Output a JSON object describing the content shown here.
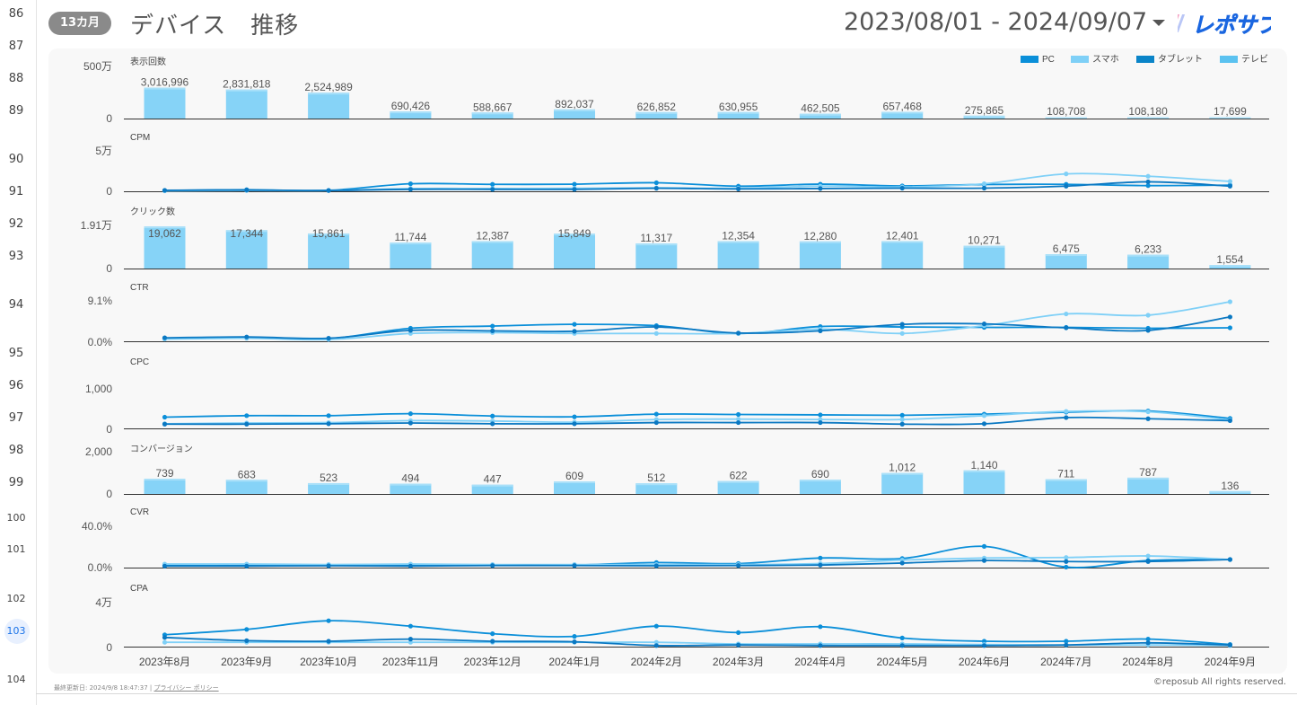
{
  "sheet": {
    "row_numbers": [
      "86",
      "87",
      "88",
      "89",
      "90",
      "91",
      "92",
      "93",
      "94",
      "95",
      "96",
      "97",
      "98",
      "99",
      "100",
      "101",
      "102",
      "103",
      "104"
    ],
    "selected_row": "103"
  },
  "header": {
    "badge": "13カ月",
    "title": "デバイス　推移",
    "date_range": "2023/08/01 - 2024/09/07",
    "logo_text": "レポサブ"
  },
  "footer": {
    "updated": "最終更新日: 2024/9/8 18:47:37",
    "separator": " | ",
    "privacy": "プライバシー ポリシー",
    "copyright": "©reposub All rights reserved."
  },
  "legend": [
    {
      "name": "PC",
      "color": "#0b8fd9"
    },
    {
      "name": "スマホ",
      "color": "#7fd0f7"
    },
    {
      "name": "タブレット",
      "color": "#0a84c8"
    },
    {
      "name": "テレビ",
      "color": "#5bc2f0"
    }
  ],
  "colors": {
    "bar": "#86d3f7",
    "bar_top": "#a9e0f9",
    "line_pc": "#0b8fd9",
    "line_sp": "#7fd0f7",
    "line_tab": "#0a78c2",
    "line_tv": "#2aa6e6",
    "axis": "#555555"
  },
  "chart_data": {
    "type": "combo",
    "categories": [
      "2023年8月",
      "2023年9月",
      "2023年10月",
      "2023年11月",
      "2023年12月",
      "2024年1月",
      "2024年2月",
      "2024年3月",
      "2024年4月",
      "2024年5月",
      "2024年6月",
      "2024年7月",
      "2024年8月",
      "2024年9月"
    ],
    "panels": [
      {
        "key": "impressions",
        "type": "bar",
        "label": "表示回数",
        "ymax_label": "500万",
        "ymin_label": "0",
        "ylim": [
          0,
          5000000
        ],
        "values": [
          3016996,
          2831818,
          2524989,
          690426,
          588667,
          892037,
          626852,
          630955,
          462505,
          657468,
          275865,
          108708,
          108180,
          17699
        ],
        "value_labels": [
          "3,016,996",
          "2,831,818",
          "2,524,989",
          "690,426",
          "588,667",
          "892,037",
          "626,852",
          "630,955",
          "462,505",
          "657,468",
          "275,865",
          "108,708",
          "108,180",
          "17,699"
        ]
      },
      {
        "key": "cpm",
        "type": "line",
        "label": "CPM",
        "ymax_label": "5万",
        "ymin_label": "0",
        "ylim": [
          0,
          50000
        ],
        "series": [
          {
            "name": "PC",
            "values": [
              1000,
              2000,
              1200,
              9500,
              8800,
              9000,
              10800,
              6500,
              9000,
              6800,
              8600,
              8800,
              7200,
              7800
            ]
          },
          {
            "name": "スマホ",
            "values": [
              500,
              1000,
              900,
              3500,
              3500,
              3800,
              4500,
              3800,
              6500,
              5500,
              9500,
              22000,
              19000,
              12500
            ]
          },
          {
            "name": "タブレット",
            "values": [
              1200,
              1600,
              1000,
              2500,
              2500,
              2500,
              3800,
              3000,
              3500,
              4000,
              4000,
              6500,
              12000,
              6500
            ]
          }
        ]
      },
      {
        "key": "clicks",
        "type": "bar",
        "label": "クリック数",
        "ymax_label": "1.91万",
        "ymin_label": "0",
        "ylim": [
          0,
          19100
        ],
        "values": [
          19062,
          17344,
          15861,
          11744,
          12387,
          15849,
          11317,
          12354,
          12280,
          12401,
          10271,
          6475,
          6233,
          1554
        ],
        "value_labels": [
          "19,062",
          "17,344",
          "15,861",
          "11,744",
          "12,387",
          "15,849",
          "11,317",
          "12,354",
          "12,280",
          "12,401",
          "10,271",
          "6,475",
          "6,233",
          "1,554"
        ]
      },
      {
        "key": "ctr",
        "type": "line",
        "label": "CTR",
        "ymax_label": "9.1%",
        "ymin_label": "0.0%",
        "ylim": [
          0,
          9.1
        ],
        "series": [
          {
            "name": "PC",
            "values": [
              0.7,
              0.8,
              0.6,
              3.0,
              3.5,
              3.9,
              3.6,
              1.8,
              3.4,
              3.3,
              3.2,
              3.2,
              3.0,
              3.1
            ]
          },
          {
            "name": "スマホ",
            "values": [
              0.5,
              0.7,
              0.4,
              1.8,
              2.0,
              1.8,
              1.8,
              1.8,
              2.8,
              1.8,
              3.6,
              6.3,
              6.0,
              9.1
            ]
          },
          {
            "name": "タブレット",
            "values": [
              0.8,
              1.0,
              0.7,
              2.5,
              2.4,
              2.3,
              3.3,
              1.9,
              2.4,
              3.9,
              4.0,
              3.1,
              2.5,
              5.6
            ]
          }
        ]
      },
      {
        "key": "cpc",
        "type": "line",
        "label": "CPC",
        "ymax_label": "1,000",
        "ymin_label": "0",
        "ylim": [
          0,
          1000
        ],
        "series": [
          {
            "name": "PC",
            "values": [
              290,
              330,
              330,
              380,
              320,
              300,
              370,
              360,
              350,
              340,
              370,
              420,
              450,
              260
            ]
          },
          {
            "name": "スマホ",
            "values": [
              120,
              140,
              150,
              200,
              190,
              160,
              230,
              240,
              230,
              230,
              330,
              440,
              430,
              220
            ]
          },
          {
            "name": "タブレット",
            "values": [
              110,
              110,
              120,
              140,
              120,
              120,
              150,
              150,
              150,
              110,
              120,
              280,
              250,
              200
            ]
          }
        ]
      },
      {
        "key": "conversions",
        "type": "bar",
        "label": "コンバージョン",
        "ymax_label": "2,000",
        "ymin_label": "0",
        "ylim": [
          0,
          2000
        ],
        "values": [
          739,
          683,
          523,
          494,
          447,
          609,
          512,
          622,
          690,
          1012,
          1140,
          711,
          787,
          136
        ],
        "value_labels": [
          "739",
          "683",
          "523",
          "494",
          "447",
          "609",
          "512",
          "622",
          "690",
          "1,012",
          "1,140",
          "711",
          "787",
          "136"
        ]
      },
      {
        "key": "cvr",
        "type": "line",
        "label": "CVR",
        "ymax_label": "40.0%",
        "ymin_label": "0.0%",
        "ylim": [
          0,
          40
        ],
        "series": [
          {
            "name": "PC",
            "values": [
              2.0,
              2.0,
              2.2,
              2.0,
              2.5,
              2.5,
              5.0,
              4.0,
              9.5,
              9.0,
              21.0,
              0.5,
              7.0,
              8.0
            ]
          },
          {
            "name": "スマホ",
            "values": [
              3.5,
              3.5,
              3.0,
              3.5,
              3.0,
              3.0,
              3.0,
              3.0,
              4.0,
              7.5,
              9.5,
              10.0,
              11.5,
              8.0
            ]
          },
          {
            "name": "タブレット",
            "values": [
              1.5,
              1.5,
              1.8,
              1.5,
              2.0,
              2.0,
              1.8,
              2.0,
              2.5,
              4.5,
              7.0,
              6.0,
              6.0,
              8.0
            ]
          }
        ]
      },
      {
        "key": "cpa",
        "type": "line",
        "label": "CPA",
        "ymax_label": "4万",
        "ymin_label": "0",
        "ylim": [
          0,
          40000
        ],
        "series": [
          {
            "name": "PC",
            "values": [
              11000,
              16000,
              24000,
              19000,
              12000,
              9500,
              19000,
              13000,
              18500,
              8000,
              5000,
              5000,
              7000,
              2000
            ]
          },
          {
            "name": "スマホ",
            "values": [
              4000,
              4000,
              4000,
              4000,
              4000,
              4000,
              4000,
              2500,
              2500,
              2500,
              2000,
              1500,
              1500,
              1000
            ]
          },
          {
            "name": "タブレット",
            "values": [
              8500,
              5500,
              5000,
              7000,
              5000,
              4500,
              1000,
              1500,
              1000,
              1000,
              1000,
              1500,
              3500,
              1500
            ]
          }
        ]
      }
    ]
  }
}
